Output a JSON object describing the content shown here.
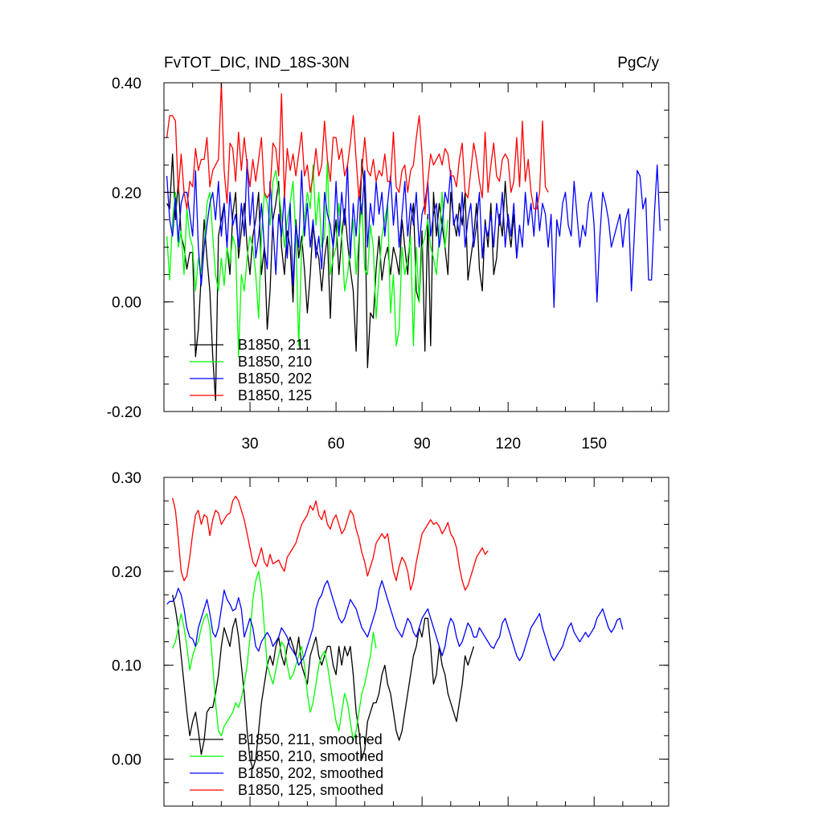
{
  "colors": {
    "s211": "#000000",
    "s210": "#00ff00",
    "s202": "#0000ff",
    "s125": "#ff0000"
  },
  "chart_data": [
    {
      "type": "line",
      "title": "FvTOT_DIC, IND_18S-30N",
      "units": "PgC/y",
      "xlim": [
        0,
        176
      ],
      "ylim": [
        -0.2,
        0.4
      ],
      "yticks": [
        -0.2,
        0.0,
        0.2,
        0.4
      ],
      "ytick_labels": [
        "-0.20",
        "0.00",
        "0.20",
        "0.40"
      ],
      "xticks": [
        30,
        60,
        90,
        120,
        150
      ],
      "xtick_labels": [
        "30",
        "60",
        "90",
        "120",
        "150"
      ],
      "legend": "bottom-left",
      "series": [
        {
          "name": "B1850, 211",
          "color": "#000000",
          "x_start": 1,
          "values": [
            0.18,
            0.17,
            0.27,
            0.15,
            0.22,
            0.12,
            0.1,
            0.06,
            0.09,
            0.09,
            -0.1,
            -0.05,
            0.05,
            0.15,
            0.08,
            0.02,
            -0.1,
            -0.18,
            0.12,
            0.15,
            0.18,
            0.1,
            0.05,
            0.16,
            0.2,
            0.08,
            0.13,
            0.18,
            0.1,
            0.05,
            0.12,
            0.15,
            0.2,
            0.05,
            0.1,
            -0.05,
            0.02,
            0.15,
            0.18,
            0.22,
            0.1,
            0.05,
            0.13,
            0.1,
            0.0,
            0.15,
            0.08,
            0.12,
            0.06,
            -0.02,
            0.05,
            0.14,
            0.1,
            0.08,
            0.02,
            0.08,
            0.12,
            -0.03,
            0.1,
            0.15,
            0.05,
            0.12,
            0.17,
            0.11,
            0.06,
            0.02,
            -0.09,
            0.1,
            0.26,
            0.2,
            -0.12,
            -0.02,
            -0.03,
            0.06,
            0.12,
            0.04,
            0.08,
            0.1,
            0.05,
            0.1,
            0.08,
            0.05,
            0.15,
            0.1,
            0.05,
            0.14,
            0.18,
            0.02,
            0.0,
            0.13,
            -0.09,
            0.16,
            -0.08,
            0.2,
            0.12,
            0.18,
            0.14,
            0.1,
            0.05,
            0.2,
            0.15,
            0.12,
            0.18,
            0.14,
            0.2,
            0.04,
            0.08,
            0.12,
            0.18,
            0.06,
            0.02,
            0.15,
            0.1,
            0.18,
            0.05,
            0.08,
            0.16,
            0.12,
            0.22,
            0.14,
            0.1,
            0.16,
            0.08,
            0.14
          ]
        },
        {
          "name": "B1850, 210",
          "color": "#00ff00",
          "x_start": 1,
          "values": [
            0.12,
            0.04,
            0.15,
            0.2,
            0.1,
            0.13,
            0.05,
            0.17,
            0.12,
            0.1,
            0.02,
            0.08,
            0.05,
            0.1,
            0.18,
            0.2,
            0.12,
            0.05,
            0.02,
            0.08,
            0.03,
            0.1,
            0.07,
            0.12,
            0.1,
            -0.1,
            0.05,
            0.02,
            0.08,
            0.12,
            0.1,
            0.05,
            -0.03,
            0.12,
            0.2,
            0.18,
            0.14,
            0.22,
            0.24,
            0.2,
            0.16,
            0.1,
            0.15,
            0.18,
            0.22,
            0.12,
            -0.08,
            0.1,
            0.15,
            0.2,
            0.17,
            0.25,
            0.14,
            0.2,
            0.1,
            0.12,
            0.26,
            0.05,
            0.08,
            0.1,
            0.18,
            0.12,
            0.02,
            0.05,
            0.1,
            0.15,
            0.05,
            0.12,
            0.18,
            0.06,
            0.05,
            0.14,
            0.1,
            -0.03,
            0.05,
            0.12,
            0.15,
            0.18,
            -0.02,
            0.05,
            -0.08,
            -0.05,
            0.1,
            0.05,
            0.08,
            0.12,
            -0.08,
            0.1,
            0.0,
            0.1,
            0.12,
            0.15,
            0.1,
            0.08,
            0.05,
            0.12,
            0.2,
            0.1,
            0.15
          ]
        },
        {
          "name": "B1850, 202",
          "color": "#0000ff",
          "x_start": 1,
          "values": [
            0.23,
            0.15,
            0.12,
            0.19,
            0.11,
            0.18,
            0.2,
            0.2,
            0.16,
            0.12,
            0.24,
            0.1,
            0.03,
            0.1,
            0.14,
            0.18,
            0.2,
            0.15,
            0.22,
            0.12,
            0.18,
            0.1,
            0.2,
            0.14,
            0.16,
            0.1,
            0.18,
            0.12,
            0.26,
            0.14,
            0.2,
            0.08,
            0.12,
            0.18,
            0.1,
            0.06,
            0.22,
            0.14,
            0.05,
            0.16,
            0.12,
            0.2,
            0.08,
            0.18,
            0.03,
            0.14,
            0.1,
            0.24,
            0.12,
            0.18,
            0.1,
            0.15,
            0.08,
            0.12,
            0.06,
            0.2,
            0.16,
            0.14,
            0.1,
            0.22,
            0.12,
            0.2,
            0.14,
            0.25,
            0.08,
            0.18,
            0.12,
            0.2,
            0.16,
            0.24,
            0.1,
            0.18,
            0.14,
            0.22,
            0.16,
            0.2,
            0.12,
            0.18,
            0.23,
            0.14,
            0.2,
            0.1,
            0.16,
            0.22,
            0.12,
            0.18,
            0.14,
            0.2,
            0.1,
            0.16,
            0.18,
            0.22,
            0.12,
            0.16,
            0.18,
            0.1,
            0.14,
            0.2,
            0.18,
            0.24,
            0.14,
            0.16,
            0.12,
            0.2,
            0.1,
            0.15,
            0.18,
            0.1,
            0.14,
            0.2,
            0.08,
            0.14,
            0.12,
            0.16,
            0.1,
            0.18,
            0.14,
            0.2,
            0.1,
            0.16,
            0.12,
            0.18,
            0.08,
            0.14,
            0.1,
            0.2,
            0.14,
            0.18,
            0.12,
            0.2,
            0.13,
            0.18,
            0.16,
            0.1,
            0.16,
            -0.01,
            0.15,
            0.12,
            0.18,
            0.2,
            0.14,
            0.12,
            0.22,
            0.16,
            0.1,
            0.14,
            0.12,
            0.18,
            0.2,
            0.14,
            0.0,
            0.12,
            0.2,
            0.18,
            0.15,
            0.1,
            0.12,
            0.14,
            0.16,
            0.1,
            0.15,
            0.17,
            0.02,
            0.12,
            0.24,
            0.23,
            0.17,
            0.19,
            0.04,
            0.04,
            0.16,
            0.25,
            0.13
          ]
        },
        {
          "name": "B1850, 125",
          "color": "#ff0000",
          "x_start": 1,
          "values": [
            0.3,
            0.34,
            0.34,
            0.33,
            0.2,
            0.27,
            0.2,
            0.17,
            0.22,
            0.21,
            0.28,
            0.24,
            0.26,
            0.26,
            0.3,
            0.21,
            0.24,
            0.25,
            0.26,
            0.4,
            0.24,
            0.18,
            0.29,
            0.28,
            0.22,
            0.31,
            0.24,
            0.3,
            0.25,
            0.21,
            0.26,
            0.22,
            0.26,
            0.3,
            0.2,
            0.19,
            0.2,
            0.29,
            0.28,
            0.23,
            0.38,
            0.19,
            0.28,
            0.24,
            0.27,
            0.23,
            0.27,
            0.31,
            0.23,
            0.25,
            0.2,
            0.23,
            0.28,
            0.23,
            0.25,
            0.33,
            0.26,
            0.22,
            0.3,
            0.3,
            0.26,
            0.28,
            0.23,
            0.25,
            0.29,
            0.34,
            0.26,
            0.19,
            0.24,
            0.3,
            0.24,
            0.23,
            0.26,
            0.22,
            0.24,
            0.23,
            0.27,
            0.22,
            0.22,
            0.31,
            0.21,
            0.2,
            0.24,
            0.25,
            0.2,
            0.24,
            0.25,
            0.3,
            0.34,
            0.27,
            0.16,
            0.22,
            0.27,
            0.25,
            0.26,
            0.27,
            0.25,
            0.28,
            0.27,
            0.23,
            0.23,
            0.21,
            0.26,
            0.29,
            0.2,
            0.19,
            0.24,
            0.29,
            0.26,
            0.22,
            0.19,
            0.31,
            0.2,
            0.25,
            0.29,
            0.23,
            0.22,
            0.26,
            0.27,
            0.26,
            0.2,
            0.22,
            0.3,
            0.21,
            0.33,
            0.22,
            0.26,
            0.2,
            0.17,
            0.17,
            0.2,
            0.33,
            0.21,
            0.2
          ]
        }
      ]
    },
    {
      "type": "line",
      "title": "",
      "xlim": [
        0,
        176
      ],
      "ylim": [
        -0.05,
        0.3
      ],
      "yticks": [
        0.0,
        0.1,
        0.2,
        0.3
      ],
      "ytick_labels": [
        "0.00",
        "0.10",
        "0.20",
        "0.30"
      ],
      "legend": "bottom-left",
      "series": [
        {
          "name": "B1850, 211, smoothed",
          "color": "#000000",
          "x_start": 3,
          "values": [
            0.175,
            0.16,
            0.14,
            0.11,
            0.08,
            0.05,
            0.025,
            0.04,
            0.05,
            0.03,
            0.005,
            0.02,
            0.05,
            0.055,
            0.055,
            0.07,
            0.09,
            0.12,
            0.14,
            0.13,
            0.12,
            0.14,
            0.15,
            0.13,
            0.1,
            0.07,
            0.03,
            0.0,
            -0.01,
            0.0,
            0.03,
            0.06,
            0.08,
            0.1,
            0.11,
            0.1,
            0.12,
            0.13,
            0.11,
            0.1,
            0.12,
            0.13,
            0.12,
            0.11,
            0.13,
            0.1,
            0.09,
            0.08,
            0.11,
            0.12,
            0.13,
            0.11,
            0.1,
            0.11,
            0.12,
            0.12,
            0.1,
            0.09,
            0.12,
            0.1,
            0.12,
            0.11,
            0.12,
            0.09,
            0.05,
            0.03,
            0.0,
            0.01,
            0.04,
            0.05,
            0.06,
            0.06,
            0.07,
            0.09,
            0.1,
            0.08,
            0.07,
            0.05,
            0.03,
            0.02,
            0.03,
            0.05,
            0.07,
            0.09,
            0.11,
            0.12,
            0.14,
            0.13,
            0.15,
            0.15,
            0.12,
            0.08,
            0.09,
            0.12,
            0.1,
            0.09,
            0.07,
            0.06,
            0.05,
            0.04,
            0.06,
            0.08,
            0.11,
            0.1,
            0.11,
            0.12
          ]
        },
        {
          "name": "B1850, 210, smoothed",
          "color": "#00ff00",
          "x_start": 3,
          "values": [
            0.118,
            0.125,
            0.14,
            0.155,
            0.14,
            0.12,
            0.095,
            0.11,
            0.12,
            0.125,
            0.14,
            0.15,
            0.155,
            0.14,
            0.1,
            0.06,
            0.03,
            0.025,
            0.035,
            0.04,
            0.045,
            0.05,
            0.06,
            0.055,
            0.065,
            0.08,
            0.1,
            0.13,
            0.17,
            0.19,
            0.2,
            0.18,
            0.14,
            0.1,
            0.09,
            0.08,
            0.095,
            0.11,
            0.125,
            0.12,
            0.1,
            0.085,
            0.09,
            0.1,
            0.11,
            0.12,
            0.1,
            0.07,
            0.05,
            0.06,
            0.08,
            0.1,
            0.11,
            0.115,
            0.1,
            0.08,
            0.06,
            0.04,
            0.03,
            0.05,
            0.07,
            0.06,
            0.04,
            0.02,
            0.03,
            0.05,
            0.07,
            0.08,
            0.095,
            0.11,
            0.135,
            0.118
          ]
        },
        {
          "name": "B1850, 202, smoothed",
          "color": "#0000ff",
          "x_start": 1,
          "values": [
            0.165,
            0.168,
            0.168,
            0.172,
            0.182,
            0.175,
            0.16,
            0.14,
            0.13,
            0.128,
            0.12,
            0.14,
            0.15,
            0.16,
            0.17,
            0.155,
            0.135,
            0.13,
            0.14,
            0.16,
            0.18,
            0.17,
            0.165,
            0.158,
            0.16,
            0.172,
            0.16,
            0.13,
            0.14,
            0.15,
            0.14,
            0.12,
            0.115,
            0.125,
            0.13,
            0.135,
            0.13,
            0.12,
            0.125,
            0.13,
            0.14,
            0.135,
            0.13,
            0.12,
            0.115,
            0.11,
            0.1,
            0.105,
            0.11,
            0.12,
            0.13,
            0.14,
            0.16,
            0.17,
            0.175,
            0.185,
            0.19,
            0.18,
            0.17,
            0.16,
            0.15,
            0.145,
            0.15,
            0.16,
            0.17,
            0.165,
            0.16,
            0.15,
            0.14,
            0.135,
            0.13,
            0.14,
            0.15,
            0.16,
            0.18,
            0.19,
            0.18,
            0.17,
            0.16,
            0.15,
            0.14,
            0.135,
            0.13,
            0.14,
            0.15,
            0.145,
            0.135,
            0.13,
            0.14,
            0.15,
            0.155,
            0.16,
            0.15,
            0.14,
            0.13,
            0.12,
            0.11,
            0.12,
            0.14,
            0.15,
            0.145,
            0.13,
            0.12,
            0.125,
            0.135,
            0.145,
            0.14,
            0.13,
            0.13,
            0.14,
            0.135,
            0.13,
            0.125,
            0.12,
            0.118,
            0.125,
            0.13,
            0.145,
            0.15,
            0.14,
            0.13,
            0.12,
            0.11,
            0.105,
            0.11,
            0.12,
            0.13,
            0.14,
            0.145,
            0.15,
            0.155,
            0.14,
            0.13,
            0.12,
            0.11,
            0.105,
            0.11,
            0.115,
            0.12,
            0.13,
            0.14,
            0.145,
            0.135,
            0.13,
            0.125,
            0.13,
            0.135,
            0.13,
            0.135,
            0.14,
            0.15,
            0.155,
            0.16,
            0.15,
            0.14,
            0.135,
            0.14,
            0.148,
            0.15,
            0.138
          ]
        },
        {
          "name": "B1850, 125, smoothed",
          "color": "#ff0000",
          "x_start": 3,
          "values": [
            0.278,
            0.265,
            0.235,
            0.2,
            0.19,
            0.195,
            0.215,
            0.24,
            0.26,
            0.265,
            0.25,
            0.26,
            0.258,
            0.238,
            0.255,
            0.265,
            0.262,
            0.25,
            0.255,
            0.26,
            0.262,
            0.275,
            0.28,
            0.275,
            0.265,
            0.255,
            0.24,
            0.225,
            0.21,
            0.205,
            0.215,
            0.225,
            0.21,
            0.205,
            0.218,
            0.208,
            0.21,
            0.212,
            0.205,
            0.2,
            0.215,
            0.22,
            0.225,
            0.23,
            0.24,
            0.25,
            0.255,
            0.26,
            0.27,
            0.265,
            0.275,
            0.26,
            0.255,
            0.265,
            0.25,
            0.245,
            0.255,
            0.26,
            0.25,
            0.24,
            0.245,
            0.255,
            0.265,
            0.26,
            0.245,
            0.235,
            0.22,
            0.21,
            0.195,
            0.205,
            0.215,
            0.23,
            0.235,
            0.24,
            0.235,
            0.24,
            0.22,
            0.2,
            0.19,
            0.205,
            0.215,
            0.21,
            0.2,
            0.18,
            0.19,
            0.21,
            0.225,
            0.24,
            0.245,
            0.25,
            0.255,
            0.25,
            0.252,
            0.248,
            0.24,
            0.245,
            0.252,
            0.24,
            0.235,
            0.225,
            0.205,
            0.19,
            0.18,
            0.185,
            0.195,
            0.205,
            0.215,
            0.22,
            0.225,
            0.218,
            0.222
          ]
        }
      ]
    }
  ]
}
